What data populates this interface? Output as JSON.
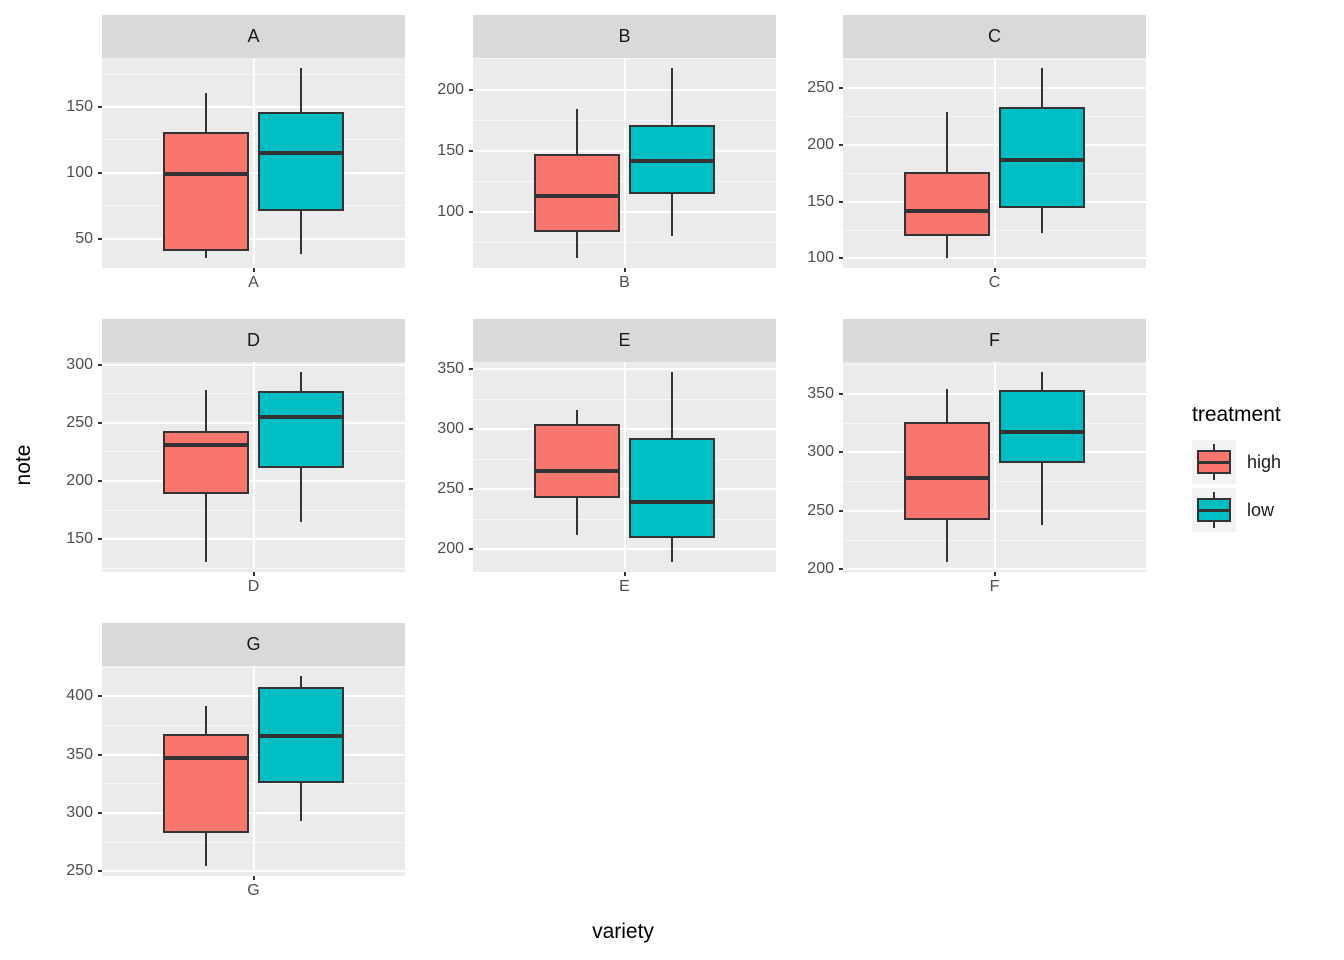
{
  "style": {
    "background": "#FFFFFF",
    "panel_bg": "#EBEBEB",
    "strip_bg": "#D9D9D9",
    "strip_text": "#1A1A1A",
    "grid_major": "#FFFFFF",
    "grid_minor": "#FFFFFF",
    "axis_text": "#4D4D4D",
    "tick_mark": "#333333",
    "box_stroke": "#333333",
    "legend_key_bg": "#F2F2F2"
  },
  "chart_data": {
    "type": "boxplot",
    "title": "",
    "xlabel": "variety",
    "ylabel": "note",
    "legend_title": "treatment",
    "legend_position": "right",
    "grid": true,
    "series_names": [
      "high",
      "low"
    ],
    "series_colors": [
      "#F8766D",
      "#00BFC4"
    ],
    "facets": [
      {
        "label": "A",
        "x_tick": "A",
        "ylim": [
          27.75,
          187.25
        ],
        "yticks": [
          50,
          100,
          150
        ],
        "series": [
          {
            "name": "high",
            "min": 35,
            "q1": 41,
            "median": 99,
            "q3": 131,
            "max": 161
          },
          {
            "name": "low",
            "min": 38,
            "q1": 71,
            "median": 115,
            "q3": 146,
            "max": 180
          }
        ]
      },
      {
        "label": "B",
        "x_tick": "B",
        "ylim": [
          54.2,
          225.8
        ],
        "yticks": [
          100,
          150,
          200
        ],
        "series": [
          {
            "name": "high",
            "min": 62,
            "q1": 84,
            "median": 113,
            "q3": 147,
            "max": 184
          },
          {
            "name": "low",
            "min": 80,
            "q1": 115,
            "median": 142,
            "q3": 171,
            "max": 218
          }
        ]
      },
      {
        "label": "C",
        "x_tick": "C",
        "ylim": [
          91.6,
          276.4
        ],
        "yticks": [
          100,
          150,
          200,
          250
        ],
        "series": [
          {
            "name": "high",
            "min": 100,
            "q1": 120,
            "median": 142,
            "q3": 176,
            "max": 229
          },
          {
            "name": "low",
            "min": 122,
            "q1": 144,
            "median": 187,
            "q3": 233,
            "max": 268
          }
        ]
      },
      {
        "label": "D",
        "x_tick": "D",
        "ylim": [
          121.8,
          302.2
        ],
        "yticks": [
          150,
          200,
          250,
          300
        ],
        "series": [
          {
            "name": "high",
            "min": 130,
            "q1": 189,
            "median": 231,
            "q3": 243,
            "max": 278
          },
          {
            "name": "low",
            "min": 165,
            "q1": 211,
            "median": 255,
            "q3": 277,
            "max": 294
          }
        ]
      },
      {
        "label": "E",
        "x_tick": "E",
        "ylim": [
          181.05,
          355.95
        ],
        "yticks": [
          200,
          250,
          300,
          350
        ],
        "series": [
          {
            "name": "high",
            "min": 212,
            "q1": 243,
            "median": 265,
            "q3": 304,
            "max": 316
          },
          {
            "name": "low",
            "min": 189,
            "q1": 209,
            "median": 239,
            "q3": 293,
            "max": 348
          }
        ]
      },
      {
        "label": "F",
        "x_tick": "F",
        "ylim": [
          197.85,
          377.15
        ],
        "yticks": [
          200,
          250,
          300,
          350
        ],
        "series": [
          {
            "name": "high",
            "min": 206,
            "q1": 242,
            "median": 278,
            "q3": 326,
            "max": 354
          },
          {
            "name": "low",
            "min": 238,
            "q1": 291,
            "median": 317,
            "q3": 353,
            "max": 369
          }
        ]
      },
      {
        "label": "G",
        "x_tick": "G",
        "ylim": [
          245.8,
          426.2
        ],
        "yticks": [
          250,
          300,
          350,
          400
        ],
        "series": [
          {
            "name": "high",
            "min": 254,
            "q1": 283,
            "median": 347,
            "q3": 368,
            "max": 392
          },
          {
            "name": "low",
            "min": 293,
            "q1": 326,
            "median": 366,
            "q3": 408,
            "max": 418
          }
        ]
      }
    ]
  }
}
